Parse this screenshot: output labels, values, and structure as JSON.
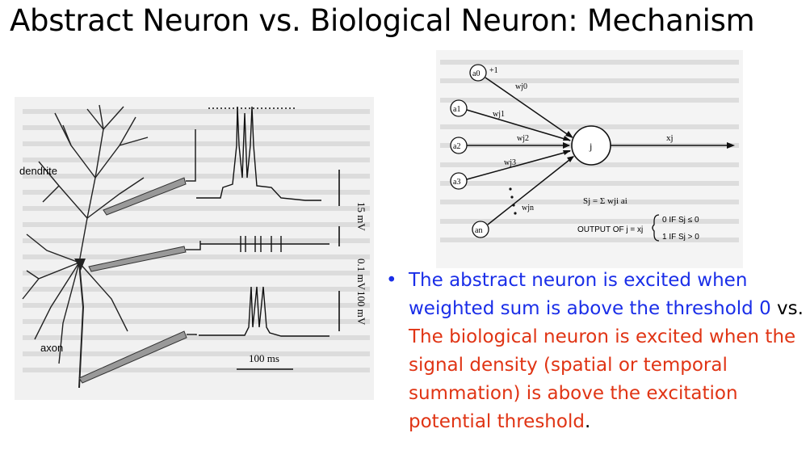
{
  "slide": {
    "title": "Abstract Neuron vs. Biological Neuron: Mechanism"
  },
  "biological_figure": {
    "label_dendrite": "dendrite",
    "label_axon": "axon",
    "scale_15mv": "15 mV",
    "scale_01mv": "0.1 mV",
    "scale_100mv": "100 mV",
    "scale_100ms": "100 ms"
  },
  "abstract_figure": {
    "inputs": [
      "a0",
      "a1",
      "a2",
      "a3",
      "an"
    ],
    "bias_input": "+1",
    "weights": [
      "wj0",
      "wj1",
      "wj2",
      "wj3",
      "wjn"
    ],
    "node_label": "j",
    "output_label": "xj",
    "sum_formula": "Sj = Σ wji ai",
    "output_rule_label": "OUTPUT OF j = xj",
    "case_zero": "0 IF Sj ≤ 0",
    "case_one": "1 IF Sj > 0"
  },
  "bullet": {
    "part1": "The abstract neuron is excited when weighted sum is above the threshold 0",
    "part2": "vs. ",
    "part3": "The biological neuron is excited when the signal density (spatial or temporal summation) is above the excitation potential threshold",
    "part4": ".",
    "colors": {
      "abstract": "#1a2ee8",
      "biological": "#e03414",
      "neutral": "#000000"
    }
  }
}
